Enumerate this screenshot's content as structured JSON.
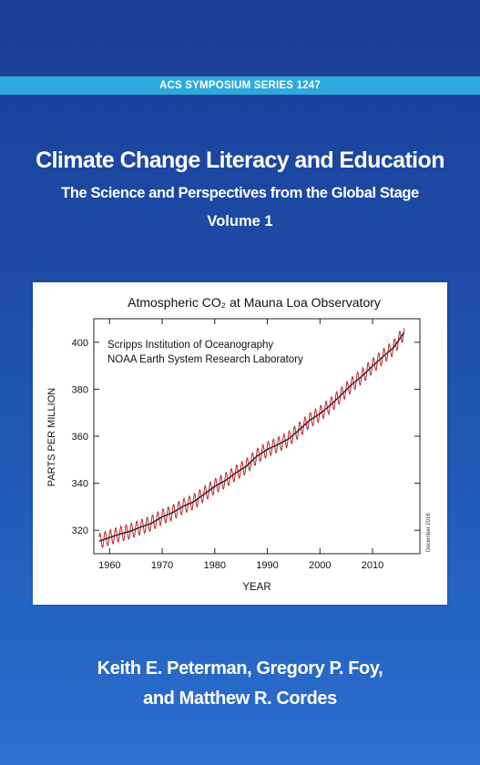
{
  "series_label": "ACS SYMPOSIUM SERIES 1247",
  "title": "Climate Change Literacy and Education",
  "subtitle": "The Science and Perspectives from the Global Stage",
  "volume": "Volume 1",
  "authors_line1": "Keith E. Peterman, Gregory P. Foy,",
  "authors_line2": "and Matthew R. Cordes",
  "colors": {
    "background": "#1f55b3",
    "series_bar": "#2ea9dc",
    "trend_line": "#222222",
    "monthly_line": "#c0202a"
  },
  "chart_data": {
    "type": "line",
    "title": "Atmospheric CO₂ at Mauna Loa Observatory",
    "annotations": [
      "Scripps Institution of Oceanography",
      "NOAA Earth System Research Laboratory"
    ],
    "side_note": "December 2016",
    "xlabel": "YEAR",
    "ylabel": "PARTS PER MILLION",
    "xlim": [
      1957,
      2019
    ],
    "ylim": [
      310,
      410
    ],
    "xticks": [
      1960,
      1970,
      1980,
      1990,
      2000,
      2010
    ],
    "yticks": [
      320,
      340,
      360,
      380,
      400
    ],
    "grid": false,
    "series": [
      {
        "x": [
          1958,
          1960,
          1962,
          1964,
          1966,
          1968,
          1970,
          1972,
          1974,
          1976,
          1978,
          1980,
          1982,
          1984,
          1986,
          1988,
          1990,
          1992,
          1994,
          1996,
          1998,
          2000,
          2002,
          2004,
          2006,
          2008,
          2010,
          2012,
          2014,
          2016
        ],
        "y": [
          315.3,
          316.9,
          318.4,
          319.6,
          321.4,
          323.0,
          325.7,
          327.5,
          330.2,
          332.1,
          335.4,
          338.7,
          341.1,
          344.4,
          347.2,
          351.5,
          354.4,
          356.4,
          358.8,
          362.6,
          366.7,
          369.6,
          373.2,
          377.5,
          381.9,
          385.6,
          389.9,
          393.9,
          397.7,
          404.2
        ]
      }
    ],
    "seasonal_amplitude_ppm": 3.2
  }
}
